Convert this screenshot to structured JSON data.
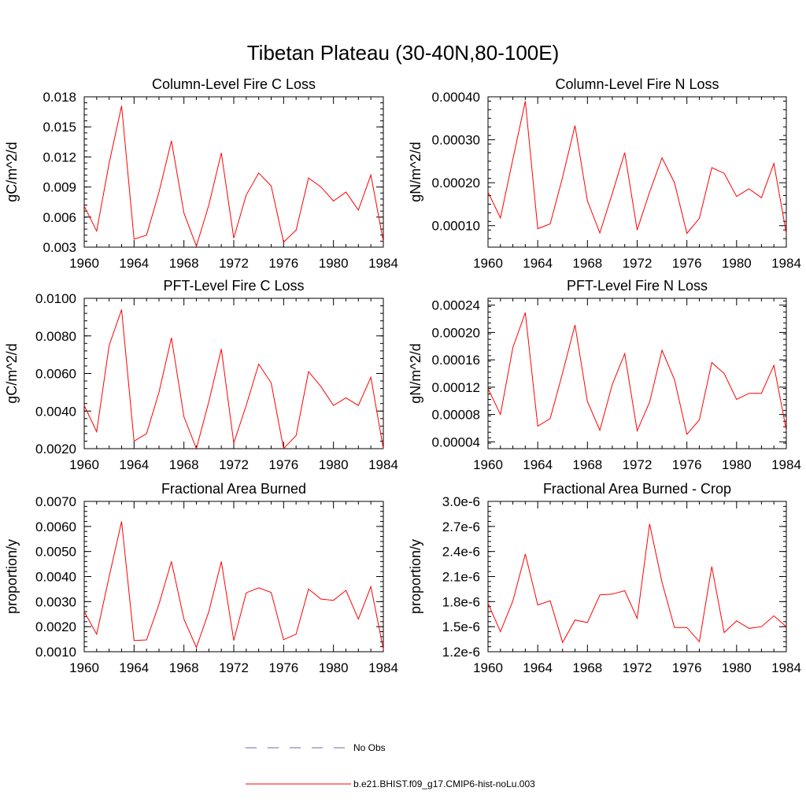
{
  "title": "Tibetan Plateau (30-40N,80-100E)",
  "legend": {
    "obs_label": "No Obs",
    "model_label": "b.e21.BHIST.f09_g17.CMIP6-hist-noLu.003"
  },
  "colors": {
    "model": "#ff0000",
    "obs": "#6a6aa8",
    "axis": "#000000"
  },
  "chart_data": [
    {
      "type": "line",
      "title": "Column-Level Fire C Loss",
      "ylabel": "gC/m^2/d",
      "xlim": [
        1960,
        1984
      ],
      "ylim": [
        0.003,
        0.018
      ],
      "x_ticks": [
        "1960",
        "1964",
        "1968",
        "1972",
        "1976",
        "1980",
        "1984"
      ],
      "y_ticks": [
        0.003,
        0.006,
        0.009,
        0.012,
        0.015,
        0.018
      ],
      "y_tick_labels": [
        "0.003",
        "0.006",
        "0.009",
        "0.012",
        "0.015",
        "0.018"
      ],
      "x": [
        1960,
        1961,
        1962,
        1963,
        1964,
        1965,
        1966,
        1967,
        1968,
        1969,
        1970,
        1971,
        1972,
        1973,
        1974,
        1975,
        1976,
        1977,
        1978,
        1979,
        1980,
        1981,
        1982,
        1983,
        1984
      ],
      "series": [
        {
          "name": "b.e21.BHIST.f09_g17.CMIP6-hist-noLu.003",
          "values": [
            0.0071,
            0.0046,
            0.0114,
            0.0171,
            0.0038,
            0.0042,
            0.0085,
            0.0136,
            0.0064,
            0.0031,
            0.0072,
            0.0124,
            0.0039,
            0.0082,
            0.0104,
            0.0091,
            0.0035,
            0.0047,
            0.0099,
            0.009,
            0.0076,
            0.0085,
            0.0067,
            0.0102,
            0.0036
          ]
        }
      ]
    },
    {
      "type": "line",
      "title": "Column-Level Fire N Loss",
      "ylabel": "gN/m^2/d",
      "xlim": [
        1960,
        1984
      ],
      "ylim": [
        5e-05,
        0.0004
      ],
      "x_ticks": [
        "1960",
        "1964",
        "1968",
        "1972",
        "1976",
        "1980",
        "1984"
      ],
      "y_ticks": [
        0.0001,
        0.0002,
        0.0003,
        0.0004
      ],
      "y_tick_labels": [
        "0.00010",
        "0.00020",
        "0.00030",
        "0.00040"
      ],
      "x": [
        1960,
        1961,
        1962,
        1963,
        1964,
        1965,
        1966,
        1967,
        1968,
        1969,
        1970,
        1971,
        1972,
        1973,
        1974,
        1975,
        1976,
        1977,
        1978,
        1979,
        1980,
        1981,
        1982,
        1983,
        1984
      ],
      "series": [
        {
          "name": "b.e21.BHIST.f09_g17.CMIP6-hist-noLu.003",
          "values": [
            0.000178,
            0.000118,
            0.000255,
            0.00039,
            9.3e-05,
            0.000104,
            0.000213,
            0.000333,
            0.000158,
            8.3e-05,
            0.000175,
            0.00027,
            9e-05,
            0.000178,
            0.000258,
            0.0002,
            8.2e-05,
            0.000117,
            0.000235,
            0.000222,
            0.000168,
            0.000186,
            0.000165,
            0.000245,
            8.2e-05
          ]
        }
      ]
    },
    {
      "type": "line",
      "title": "PFT-Level Fire C Loss",
      "ylabel": "gC/m^2/d",
      "xlim": [
        1960,
        1984
      ],
      "ylim": [
        0.002,
        0.01
      ],
      "x_ticks": [
        "1960",
        "1964",
        "1968",
        "1972",
        "1976",
        "1980",
        "1984"
      ],
      "y_ticks": [
        0.002,
        0.004,
        0.006,
        0.008,
        0.01
      ],
      "y_tick_labels": [
        "0.0020",
        "0.0040",
        "0.0060",
        "0.0080",
        "0.0100"
      ],
      "x": [
        1960,
        1961,
        1962,
        1963,
        1964,
        1965,
        1966,
        1967,
        1968,
        1969,
        1970,
        1971,
        1972,
        1973,
        1974,
        1975,
        1976,
        1977,
        1978,
        1979,
        1980,
        1981,
        1982,
        1983,
        1984
      ],
      "series": [
        {
          "name": "b.e21.BHIST.f09_g17.CMIP6-hist-noLu.003",
          "values": [
            0.0043,
            0.0029,
            0.0075,
            0.0094,
            0.0024,
            0.0028,
            0.005,
            0.0079,
            0.0037,
            0.002,
            0.0045,
            0.0073,
            0.0023,
            0.0043,
            0.0065,
            0.0055,
            0.002,
            0.0027,
            0.0061,
            0.0053,
            0.0043,
            0.0047,
            0.0043,
            0.0058,
            0.002
          ]
        }
      ]
    },
    {
      "type": "line",
      "title": "PFT-Level Fire N Loss",
      "ylabel": "gN/m^2/d",
      "xlim": [
        1960,
        1984
      ],
      "ylim": [
        3e-05,
        0.00025
      ],
      "x_ticks": [
        "1960",
        "1964",
        "1968",
        "1972",
        "1976",
        "1980",
        "1984"
      ],
      "y_ticks": [
        4e-05,
        8e-05,
        0.00012,
        0.00016,
        0.0002,
        0.00024
      ],
      "y_tick_labels": [
        "0.00004",
        "0.00008",
        "0.00012",
        "0.00016",
        "0.00020",
        "0.00024"
      ],
      "x": [
        1960,
        1961,
        1962,
        1963,
        1964,
        1965,
        1966,
        1967,
        1968,
        1969,
        1970,
        1971,
        1972,
        1973,
        1974,
        1975,
        1976,
        1977,
        1978,
        1979,
        1980,
        1981,
        1982,
        1983,
        1984
      ],
      "series": [
        {
          "name": "b.e21.BHIST.f09_g17.CMIP6-hist-noLu.003",
          "values": [
            0.000118,
            8e-05,
            0.000178,
            0.000229,
            6.3e-05,
            7.4e-05,
            0.000141,
            0.000211,
            9.9e-05,
            5.7e-05,
            0.000124,
            0.000169,
            5.6e-05,
            9.8e-05,
            0.000174,
            0.000131,
            5.1e-05,
            7.2e-05,
            0.000156,
            0.00014,
            0.000102,
            0.000111,
            0.000111,
            0.000152,
            5.7e-05
          ]
        }
      ]
    },
    {
      "type": "line",
      "title": "Fractional Area Burned",
      "ylabel": "proportion/y",
      "xlim": [
        1960,
        1984
      ],
      "ylim": [
        0.001,
        0.007
      ],
      "x_ticks": [
        "1960",
        "1964",
        "1968",
        "1972",
        "1976",
        "1980",
        "1984"
      ],
      "y_ticks": [
        0.001,
        0.002,
        0.003,
        0.004,
        0.005,
        0.006,
        0.007
      ],
      "y_tick_labels": [
        "0.0010",
        "0.0020",
        "0.0030",
        "0.0040",
        "0.0050",
        "0.0060",
        "0.0070"
      ],
      "x": [
        1960,
        1961,
        1962,
        1963,
        1964,
        1965,
        1966,
        1967,
        1968,
        1969,
        1970,
        1971,
        1972,
        1973,
        1974,
        1975,
        1976,
        1977,
        1978,
        1979,
        1980,
        1981,
        1982,
        1983,
        1984
      ],
      "series": [
        {
          "name": "b.e21.BHIST.f09_g17.CMIP6-hist-noLu.003",
          "values": [
            0.0026,
            0.0017,
            0.004,
            0.0062,
            0.00145,
            0.00147,
            0.0029,
            0.0046,
            0.0023,
            0.00117,
            0.0026,
            0.0046,
            0.00145,
            0.00335,
            0.00355,
            0.00337,
            0.00148,
            0.0017,
            0.0035,
            0.0031,
            0.00305,
            0.00345,
            0.0023,
            0.0036,
            0.0011
          ]
        }
      ]
    },
    {
      "type": "line",
      "title": "Fractional Area Burned - Crop",
      "ylabel": "proportion/y",
      "xlim": [
        1960,
        1984
      ],
      "ylim": [
        1.2e-06,
        3e-06
      ],
      "x_ticks": [
        "1960",
        "1964",
        "1968",
        "1972",
        "1976",
        "1980",
        "1984"
      ],
      "y_ticks": [
        1.2e-06,
        1.5e-06,
        1.8e-06,
        2.1e-06,
        2.4e-06,
        2.7e-06,
        3e-06
      ],
      "y_tick_labels": [
        "1.2e-6",
        "1.5e-6",
        "1.8e-6",
        "2.1e-6",
        "2.4e-6",
        "2.7e-6",
        "3.0e-6"
      ],
      "x": [
        1960,
        1961,
        1962,
        1963,
        1964,
        1965,
        1966,
        1967,
        1968,
        1969,
        1970,
        1971,
        1972,
        1973,
        1974,
        1975,
        1976,
        1977,
        1978,
        1979,
        1980,
        1981,
        1982,
        1983,
        1984
      ],
      "series": [
        {
          "name": "b.e21.BHIST.f09_g17.CMIP6-hist-noLu.003",
          "values": [
            1.78e-06,
            1.44e-06,
            1.81e-06,
            2.37e-06,
            1.76e-06,
            1.81e-06,
            1.31e-06,
            1.58e-06,
            1.55e-06,
            1.88e-06,
            1.89e-06,
            1.93e-06,
            1.6e-06,
            2.73e-06,
            2.03e-06,
            1.49e-06,
            1.49e-06,
            1.32e-06,
            2.22e-06,
            1.43e-06,
            1.57e-06,
            1.48e-06,
            1.5e-06,
            1.63e-06,
            1.5e-06
          ]
        }
      ]
    }
  ]
}
